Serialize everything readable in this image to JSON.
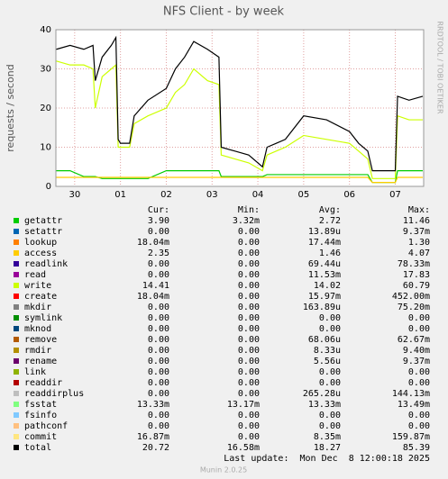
{
  "chart_data": {
    "type": "line",
    "title": "NFS Client - by week",
    "y_label": "requests / second",
    "side_label": "RRDTOOL / TOBI OETIKER",
    "footer": "Munin 2.0.25",
    "last_update": "Last update:  Mon Dec  8 12:00:18 2025",
    "columns": [
      "Cur:",
      "Min:",
      "Avg:",
      "Max:"
    ],
    "grid": true,
    "ylim": [
      0,
      40
    ],
    "yticks": [
      0,
      10,
      20,
      30,
      40
    ],
    "xlim": [
      -0.41,
      7.62
    ],
    "xticks": [
      {
        "value": 0,
        "label": "30"
      },
      {
        "value": 1,
        "label": "01"
      },
      {
        "value": 2,
        "label": "02"
      },
      {
        "value": 3,
        "label": "03"
      },
      {
        "value": 4,
        "label": "04"
      },
      {
        "value": 5,
        "label": "05"
      },
      {
        "value": 6,
        "label": "06"
      },
      {
        "value": 7,
        "label": "07"
      }
    ],
    "x": [
      -0.4,
      -0.1,
      0.2,
      0.4,
      0.45,
      0.6,
      0.8,
      0.9,
      0.95,
      1.0,
      1.2,
      1.3,
      1.6,
      2.0,
      2.2,
      2.4,
      2.6,
      2.9,
      3.15,
      3.2,
      3.5,
      3.8,
      4.1,
      4.2,
      4.4,
      4.6,
      5.0,
      5.5,
      6.0,
      6.2,
      6.4,
      6.5,
      6.8,
      7.0,
      7.05,
      7.3,
      7.6
    ],
    "series": [
      {
        "name": "getattr",
        "color": "#00cc00",
        "cur": "3.90",
        "min": "3.32m",
        "avg": "2.72",
        "max": "11.46",
        "values": [
          4,
          4,
          2.5,
          2.5,
          2.5,
          2,
          2,
          2,
          2,
          2,
          2,
          2,
          2,
          4,
          4,
          4,
          4,
          4,
          4,
          2.5,
          2.5,
          2.5,
          2.5,
          3,
          3,
          3,
          3,
          3,
          3,
          3,
          3,
          1,
          1,
          1,
          4,
          4,
          4
        ]
      },
      {
        "name": "setattr",
        "color": "#0066b3",
        "cur": "0.00",
        "min": "0.00",
        "avg": "13.89u",
        "max": "9.37m"
      },
      {
        "name": "lookup",
        "color": "#ff8000",
        "cur": "18.04m",
        "min": "0.00",
        "avg": "17.44m",
        "max": "1.30"
      },
      {
        "name": "access",
        "color": "#ffcc00",
        "cur": "2.35",
        "min": "0.00",
        "avg": "1.46",
        "max": "4.07",
        "values": [
          2.3,
          2.3,
          2.3,
          2.3,
          2.3,
          2.3,
          2.3,
          2.3,
          2.3,
          2.3,
          2.3,
          2.3,
          2.3,
          2.3,
          2.3,
          2.3,
          2.3,
          2.3,
          2.3,
          2.3,
          2.3,
          2.3,
          2.3,
          2.3,
          2.3,
          2.3,
          2.3,
          2.3,
          2.3,
          2.3,
          2.3,
          1,
          1,
          1,
          2.3,
          2.3,
          2.3
        ]
      },
      {
        "name": "readlink",
        "color": "#330099",
        "cur": "0.00",
        "min": "0.00",
        "avg": "69.44u",
        "max": "78.33m"
      },
      {
        "name": "read",
        "color": "#990099",
        "cur": "0.00",
        "min": "0.00",
        "avg": "11.53m",
        "max": "17.83"
      },
      {
        "name": "write",
        "color": "#ccff00",
        "cur": "14.41",
        "min": "0.00",
        "avg": "14.02",
        "max": "60.79",
        "values": [
          32,
          31,
          31,
          30,
          20,
          28,
          30,
          31,
          10,
          10,
          10,
          16,
          18,
          20,
          24,
          26,
          30,
          27,
          26,
          8,
          7,
          6,
          4,
          8,
          9,
          10,
          13,
          12,
          11,
          9,
          7,
          2,
          2,
          2,
          18,
          17,
          17
        ]
      },
      {
        "name": "create",
        "color": "#ff0000",
        "cur": "18.04m",
        "min": "0.00",
        "avg": "15.97m",
        "max": "452.00m"
      },
      {
        "name": "mkdir",
        "color": "#808080",
        "cur": "0.00",
        "min": "0.00",
        "avg": "163.89u",
        "max": "75.20m"
      },
      {
        "name": "symlink",
        "color": "#008f00",
        "cur": "0.00",
        "min": "0.00",
        "avg": "0.00",
        "max": "0.00"
      },
      {
        "name": "mknod",
        "color": "#00487d",
        "cur": "0.00",
        "min": "0.00",
        "avg": "0.00",
        "max": "0.00"
      },
      {
        "name": "remove",
        "color": "#b35a00",
        "cur": "0.00",
        "min": "0.00",
        "avg": "68.06u",
        "max": "62.67m"
      },
      {
        "name": "rmdir",
        "color": "#b38f00",
        "cur": "0.00",
        "min": "0.00",
        "avg": "8.33u",
        "max": "9.40m"
      },
      {
        "name": "rename",
        "color": "#6b006b",
        "cur": "0.00",
        "min": "0.00",
        "avg": "5.56u",
        "max": "9.37m"
      },
      {
        "name": "link",
        "color": "#8fb300",
        "cur": "0.00",
        "min": "0.00",
        "avg": "0.00",
        "max": "0.00"
      },
      {
        "name": "readdir",
        "color": "#b30000",
        "cur": "0.00",
        "min": "0.00",
        "avg": "0.00",
        "max": "0.00"
      },
      {
        "name": "readdirplus",
        "color": "#bebebe",
        "cur": "0.00",
        "min": "0.00",
        "avg": "265.28u",
        "max": "144.13m"
      },
      {
        "name": "fsstat",
        "color": "#80ff80",
        "cur": "13.33m",
        "min": "13.17m",
        "avg": "13.33m",
        "max": "13.49m"
      },
      {
        "name": "fsinfo",
        "color": "#80c9ff",
        "cur": "0.00",
        "min": "0.00",
        "avg": "0.00",
        "max": "0.00"
      },
      {
        "name": "pathconf",
        "color": "#ffc080",
        "cur": "0.00",
        "min": "0.00",
        "avg": "0.00",
        "max": "0.00"
      },
      {
        "name": "commit",
        "color": "#ffe680",
        "cur": "16.87m",
        "min": "0.00",
        "avg": "8.35m",
        "max": "159.87m"
      },
      {
        "name": "total",
        "color": "#000000",
        "cur": "20.72",
        "min": "16.58m",
        "avg": "18.27",
        "max": "85.39",
        "values": [
          35,
          36,
          35,
          36,
          27,
          33,
          36,
          38,
          12,
          11,
          11,
          18,
          22,
          25,
          30,
          33,
          37,
          35,
          33,
          10,
          9,
          8,
          5,
          10,
          11,
          12,
          18,
          17,
          14,
          11,
          9,
          4,
          4,
          4,
          23,
          22,
          23
        ]
      }
    ]
  }
}
